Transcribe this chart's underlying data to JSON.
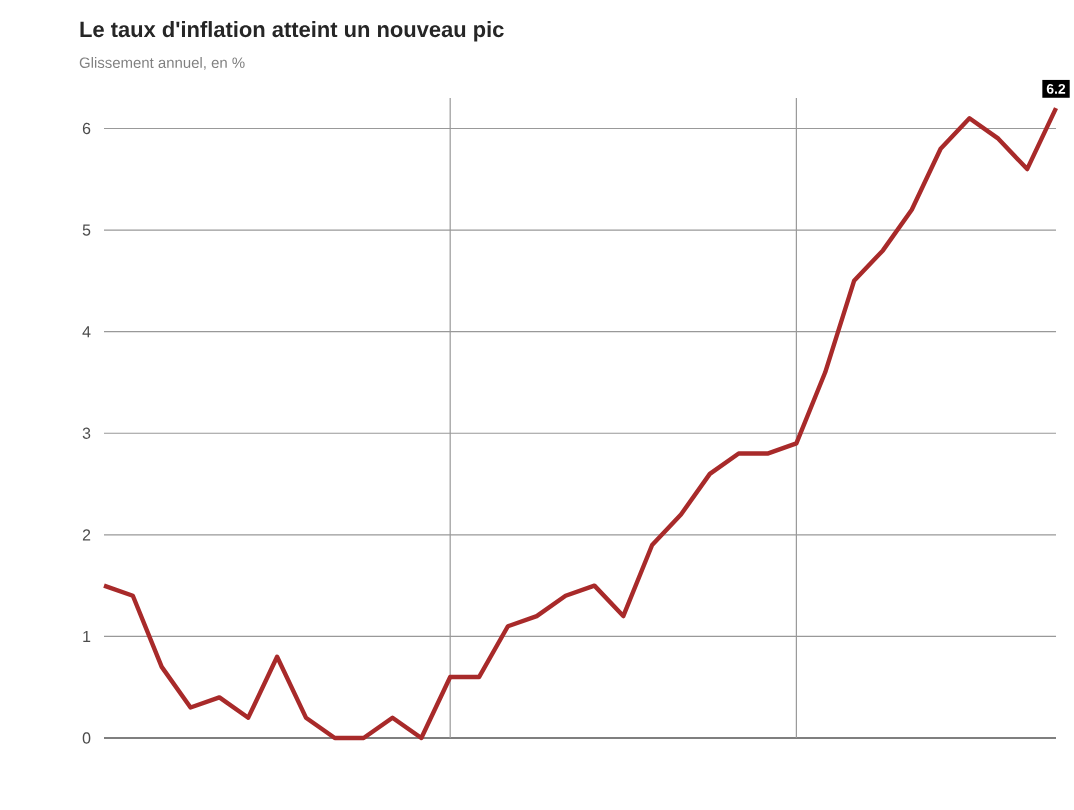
{
  "chart_data": {
    "type": "line",
    "title": "Le taux d'inflation atteint un nouveau pic",
    "subtitle": "Glissement annuel, en %",
    "categories": [
      null,
      null,
      null,
      null,
      null,
      null,
      null,
      null,
      null,
      null,
      null,
      null,
      null,
      null,
      null,
      null,
      null,
      null,
      null,
      null,
      null,
      null,
      null,
      null,
      null,
      null,
      null,
      null,
      null,
      null,
      null,
      null,
      null,
      null
    ],
    "series": [
      {
        "color": "#a82a2a",
        "values": [
          1.5,
          1.4,
          0.7,
          0.3,
          0.4,
          0.2,
          0.8,
          0.2,
          0.0,
          0.0,
          0.2,
          0.0,
          0.6,
          0.6,
          1.1,
          1.2,
          1.4,
          1.5,
          1.2,
          1.9,
          2.2,
          2.6,
          2.8,
          2.8,
          2.9,
          3.6,
          4.5,
          4.8,
          5.2,
          5.8,
          6.1,
          5.9,
          5.6,
          6.2
        ],
        "value_labels": [
          null,
          null,
          null,
          null,
          null,
          null,
          null,
          null,
          null,
          null,
          null,
          null,
          null,
          null,
          null,
          null,
          null,
          null,
          null,
          null,
          null,
          null,
          null,
          null,
          null,
          null,
          null,
          null,
          null,
          null,
          null,
          null,
          null,
          "6.2"
        ]
      }
    ],
    "ylim": [
      0,
      6.3
    ],
    "yticks": [
      0,
      1,
      2,
      3,
      4,
      5,
      6
    ],
    "grid": "y",
    "tick_labels": "y",
    "marker": "none",
    "line_style": "solid"
  }
}
